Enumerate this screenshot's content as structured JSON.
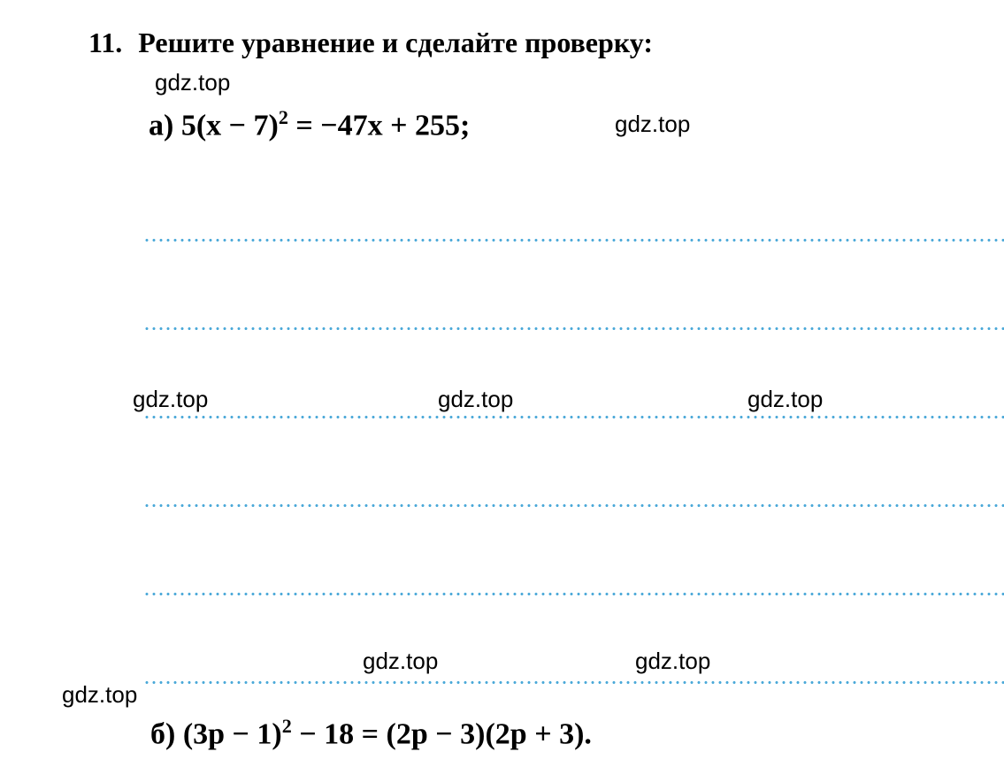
{
  "problem": {
    "number": "11.",
    "title": "Решите уравнение и сделайте проверку:",
    "part_a_label": "а)",
    "part_b_label": "б)",
    "eq_a_text": "5(x − 7)",
    "eq_a_exp": "2",
    "eq_a_rest": " = −47x + 255;",
    "eq_b_p1": "(3p − 1)",
    "eq_b_exp": "2",
    "eq_b_p2": " − 18 = (2p − 3)(2p + 3)."
  },
  "watermarks": {
    "w1": "gdz.top",
    "w2": "gdz.top",
    "w3": "gdz.top",
    "w4": "gdz.top",
    "w5": "gdz.top",
    "w6": "gdz.top",
    "w7": "gdz.top",
    "w8": "gdz.top"
  },
  "style": {
    "background_color": "#ffffff",
    "text_color": "#000000",
    "dot_color": "#4aa8d8",
    "title_fontsize": 32,
    "equation_fontsize": 34,
    "watermark_fontsize": 26,
    "line_positions": [
      270,
      370,
      470,
      570,
      670,
      770
    ],
    "line_dot_spacing": 8
  }
}
